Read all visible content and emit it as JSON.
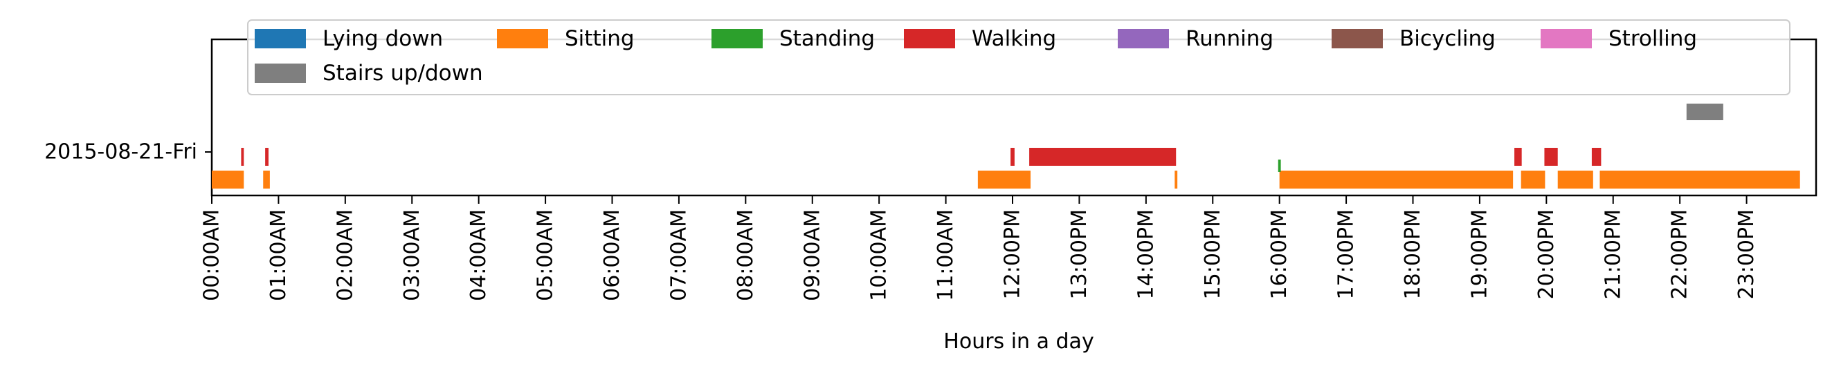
{
  "chart_data": {
    "type": "bar",
    "orientation": "horizontal-timeline",
    "title": "",
    "xlabel": "Hours in a day",
    "ylabel": "",
    "xlim": [
      0,
      24
    ],
    "x_ticks": [
      {
        "value": 0,
        "label": "00:00AM"
      },
      {
        "value": 1,
        "label": "01:00AM"
      },
      {
        "value": 2,
        "label": "02:00AM"
      },
      {
        "value": 3,
        "label": "03:00AM"
      },
      {
        "value": 4,
        "label": "04:00AM"
      },
      {
        "value": 5,
        "label": "05:00AM"
      },
      {
        "value": 6,
        "label": "06:00AM"
      },
      {
        "value": 7,
        "label": "07:00AM"
      },
      {
        "value": 8,
        "label": "08:00AM"
      },
      {
        "value": 9,
        "label": "09:00AM"
      },
      {
        "value": 10,
        "label": "10:00AM"
      },
      {
        "value": 11,
        "label": "11:00AM"
      },
      {
        "value": 12,
        "label": "12:00PM"
      },
      {
        "value": 13,
        "label": "13:00PM"
      },
      {
        "value": 14,
        "label": "14:00PM"
      },
      {
        "value": 15,
        "label": "15:00PM"
      },
      {
        "value": 16,
        "label": "16:00PM"
      },
      {
        "value": 17,
        "label": "17:00PM"
      },
      {
        "value": 18,
        "label": "18:00PM"
      },
      {
        "value": 19,
        "label": "19:00PM"
      },
      {
        "value": 20,
        "label": "20:00PM"
      },
      {
        "value": 21,
        "label": "21:00PM"
      },
      {
        "value": 22,
        "label": "22:00PM"
      },
      {
        "value": 23,
        "label": "23:00PM"
      }
    ],
    "y_ticks": [
      {
        "label": "2015-08-21-Fri"
      }
    ],
    "legend": {
      "placement": "top-center",
      "columns": 7,
      "entries": [
        {
          "name": "Lying down",
          "color": "#1f77b4"
        },
        {
          "name": "Sitting",
          "color": "#ff7f0e"
        },
        {
          "name": "Standing",
          "color": "#2ca02c"
        },
        {
          "name": "Walking",
          "color": "#d62728"
        },
        {
          "name": "Running",
          "color": "#9467bd"
        },
        {
          "name": "Bicycling",
          "color": "#8c564b"
        },
        {
          "name": "Strolling",
          "color": "#e377c2"
        },
        {
          "name": "Stairs up/down",
          "color": "#7f7f7f"
        }
      ]
    },
    "series": [
      {
        "name": "Lying down",
        "color": "#1f77b4",
        "segments": []
      },
      {
        "name": "Sitting",
        "color": "#ff7f0e",
        "segments": [
          [
            0.0,
            0.48
          ],
          [
            0.77,
            0.87
          ],
          [
            11.48,
            12.27
          ],
          [
            14.43,
            14.47
          ],
          [
            16.0,
            19.5
          ],
          [
            19.62,
            19.98
          ],
          [
            20.17,
            20.7
          ],
          [
            20.8,
            23.8
          ]
        ]
      },
      {
        "name": "Standing",
        "color": "#2ca02c",
        "segments": [
          [
            15.98,
            16.02
          ]
        ]
      },
      {
        "name": "Walking",
        "color": "#d62728",
        "segments": [
          [
            0.44,
            0.48
          ],
          [
            0.8,
            0.85
          ],
          [
            11.97,
            12.03
          ],
          [
            12.25,
            14.45
          ],
          [
            19.52,
            19.63
          ],
          [
            19.97,
            20.17
          ],
          [
            20.68,
            20.82
          ]
        ]
      },
      {
        "name": "Running",
        "color": "#9467bd",
        "segments": []
      },
      {
        "name": "Bicycling",
        "color": "#8c564b",
        "segments": []
      },
      {
        "name": "Strolling",
        "color": "#e377c2",
        "segments": []
      },
      {
        "name": "Stairs up/down",
        "color": "#7f7f7f",
        "segments": [
          [
            22.1,
            22.65
          ]
        ]
      }
    ]
  }
}
